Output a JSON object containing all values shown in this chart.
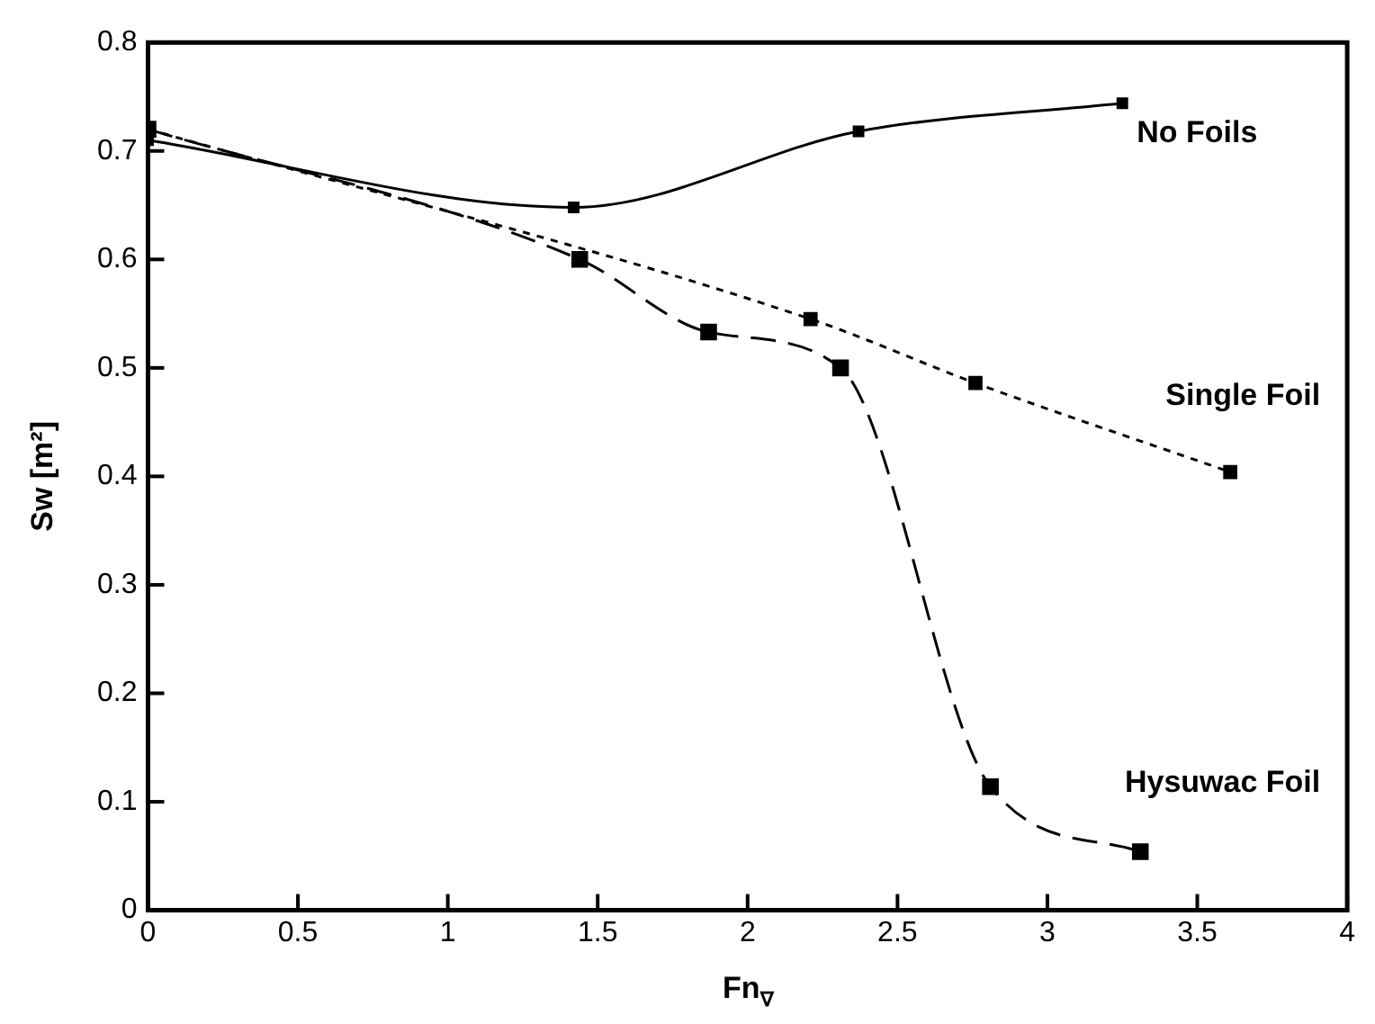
{
  "chart_data": {
    "type": "line",
    "xlabel": "Fn$_{∇}$",
    "ylabel": "Sw [m²]",
    "xlim": [
      0,
      4
    ],
    "xticks": [
      0,
      0.5,
      1,
      1.5,
      2,
      2.5,
      3,
      3.5,
      4
    ],
    "ylim": [
      0,
      0.8
    ],
    "yticks": [
      0,
      0.1,
      0.2,
      0.3,
      0.4,
      0.5,
      0.6,
      0.7,
      0.8
    ],
    "grid": false,
    "legend": false,
    "marker": "square",
    "series": [
      {
        "name": "No Foils",
        "color": "#000000",
        "line_style": "solid",
        "x": [
          0,
          1.42,
          2.37,
          3.25
        ],
        "values": [
          0.71,
          0.648,
          0.718,
          0.744
        ]
      },
      {
        "name": "Single Foil",
        "color": "#000000",
        "line_style": "dotted",
        "x": [
          0,
          2.21,
          2.76,
          3.61
        ],
        "values": [
          0.72,
          0.545,
          0.486,
          0.404
        ]
      },
      {
        "name": "Hysuwac Foil",
        "color": "#000000",
        "line_style": "dashed",
        "x": [
          0,
          1.44,
          1.87,
          2.31,
          2.81,
          3.31
        ],
        "values": [
          0.72,
          0.6,
          0.533,
          0.5,
          0.114,
          0.054
        ]
      }
    ]
  }
}
